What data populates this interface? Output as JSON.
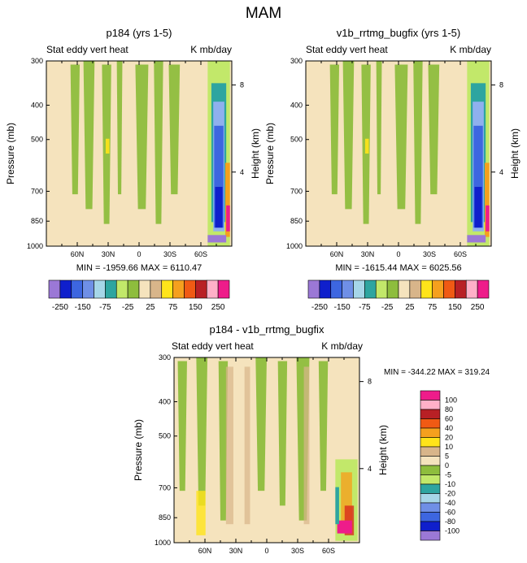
{
  "figure": {
    "title": "MAM"
  },
  "colors": {
    "bg": "#f5e3bd",
    "green": "#8ebd3d",
    "lightgreen": "#c2e86a",
    "tan": "#d8b58a",
    "yellow": "#ffe41a",
    "orange": "#f5a01e",
    "red": "#d92b1c",
    "magenta": "#ee1c8a",
    "teal": "#2ea5a0",
    "blue": "#3d66e0",
    "darkblue": "#0f1fcc",
    "lightblue": "#8fb0ee",
    "purple": "#9b78d6",
    "pink": "#ffb0c8"
  },
  "chart_data": [
    {
      "type": "heatmap",
      "title": "p184 (yrs 1-5)",
      "left_string": "Stat eddy vert heat",
      "right_string": "K mb/day",
      "xlabel": "",
      "ylabel": "Pressure (mb)",
      "ylabel_right": "Height (km)",
      "x_ticks": [
        "60N",
        "30N",
        "0",
        "30S",
        "60S"
      ],
      "y_ticks": [
        "300",
        "400",
        "500",
        "700",
        "850",
        "1000"
      ],
      "height_ticks": [
        "8",
        "4"
      ],
      "stats": "MIN = -1959.66   MAX = 6110.47",
      "colorbar": {
        "orientation": "horizontal",
        "colors": [
          "#9b78d6",
          "#0f1fcc",
          "#3d66e0",
          "#6f8fe6",
          "#a6d6e8",
          "#2ea5a0",
          "#c2e86a",
          "#8ebd3d",
          "#f5e3bd",
          "#d8b58a",
          "#ffe41a",
          "#f5a01e",
          "#f05a14",
          "#b82025",
          "#ffb0c8",
          "#ee1c8a"
        ],
        "labels": [
          "-250",
          "-150",
          "-75",
          "-25",
          "25",
          "75",
          "150",
          "250"
        ]
      }
    },
    {
      "type": "heatmap",
      "title": "v1b_rrtmg_bugfix (yrs 1-5)",
      "left_string": "Stat eddy vert heat",
      "right_string": "K mb/day",
      "xlabel": "",
      "ylabel": "Pressure (mb)",
      "ylabel_right": "Height (km)",
      "x_ticks": [
        "60N",
        "30N",
        "0",
        "30S",
        "60S"
      ],
      "y_ticks": [
        "300",
        "400",
        "500",
        "700",
        "850",
        "1000"
      ],
      "height_ticks": [
        "8",
        "4"
      ],
      "stats": "MIN = -1615.44   MAX = 6025.56",
      "colorbar": {
        "orientation": "horizontal",
        "colors": [
          "#9b78d6",
          "#0f1fcc",
          "#3d66e0",
          "#6f8fe6",
          "#a6d6e8",
          "#2ea5a0",
          "#c2e86a",
          "#8ebd3d",
          "#f5e3bd",
          "#d8b58a",
          "#ffe41a",
          "#f5a01e",
          "#f05a14",
          "#b82025",
          "#ffb0c8",
          "#ee1c8a"
        ],
        "labels": [
          "-250",
          "-150",
          "-75",
          "-25",
          "25",
          "75",
          "150",
          "250"
        ]
      }
    },
    {
      "type": "heatmap",
      "title": "p184 - v1b_rrtmg_bugfix",
      "left_string": "Stat eddy vert heat",
      "right_string": "K mb/day",
      "xlabel": "",
      "ylabel": "Pressure (mb)",
      "ylabel_right": "Height (km)",
      "x_ticks": [
        "60N",
        "30N",
        "0",
        "30S",
        "60S"
      ],
      "y_ticks": [
        "300",
        "400",
        "500",
        "700",
        "850",
        "1000"
      ],
      "height_ticks": [
        "8",
        "4"
      ],
      "stats": "MIN = -344.22   MAX = 319.24",
      "colorbar": {
        "orientation": "vertical",
        "colors": [
          "#9b78d6",
          "#0f1fcc",
          "#3d66e0",
          "#6f8fe6",
          "#a6d6e8",
          "#2ea5a0",
          "#c2e86a",
          "#8ebd3d",
          "#f5e3bd",
          "#d8b58a",
          "#ffe41a",
          "#f5a01e",
          "#f05a14",
          "#b82025",
          "#ffb0c8",
          "#ee1c8a"
        ],
        "labels": [
          "100",
          "80",
          "60",
          "40",
          "20",
          "10",
          "5",
          "0",
          "-5",
          "-10",
          "-20",
          "-40",
          "-60",
          "-80",
          "-100"
        ]
      }
    }
  ]
}
